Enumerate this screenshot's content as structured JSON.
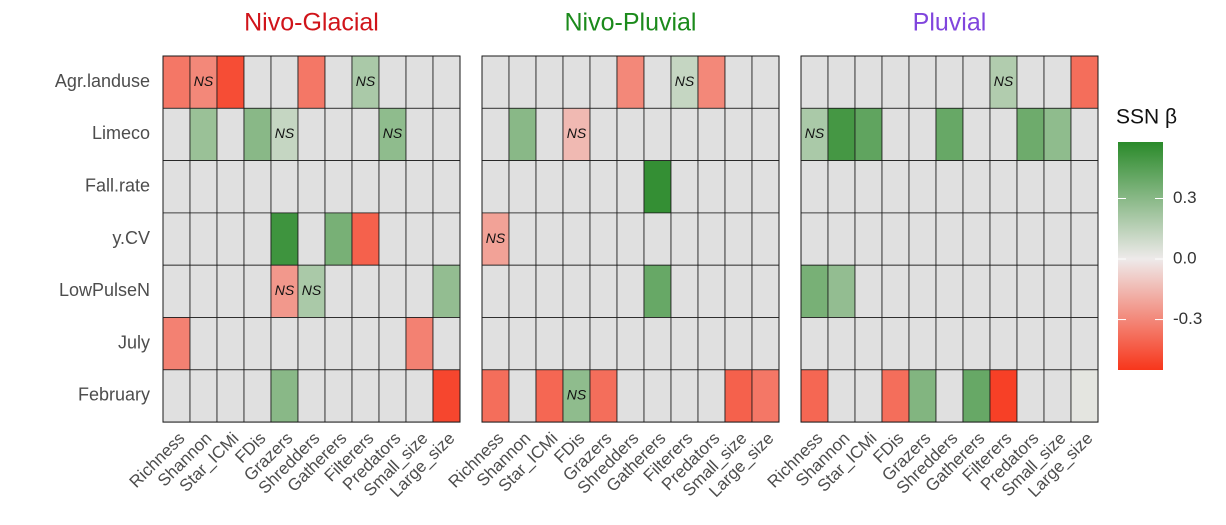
{
  "chart_data": {
    "type": "heatmap",
    "legend_title": "SSN β",
    "clim": [
      -0.55,
      0.58
    ],
    "cticks": [
      {
        "value": 0.3,
        "label": "0.3"
      },
      {
        "value": 0,
        "label": "0.0"
      },
      {
        "value": -0.3,
        "label": "-0.3"
      }
    ],
    "colors": {
      "low": "#f7361b",
      "mid": "#eeeaea",
      "high": "#2a8a2a",
      "na": "#e0e0e0"
    },
    "categories": [
      "Richness",
      "Shannon",
      "Star_ICMi",
      "FDis",
      "Grazers",
      "Shredders",
      "Gatherers",
      "Filterers",
      "Predators",
      "Small_size",
      "Large_size"
    ],
    "rows": [
      "Agr.landuse",
      "Limeco",
      "Fall.rate",
      "y.CV",
      "LowPulseN",
      "July",
      "February"
    ],
    "facets": [
      {
        "title": "Nivo-Glacial",
        "title_color": "#d0141a",
        "values": [
          [
            -0.35,
            -0.3,
            -0.48,
            null,
            null,
            -0.35,
            null,
            0.2,
            null,
            null,
            null
          ],
          [
            null,
            0.25,
            null,
            0.3,
            0.12,
            null,
            null,
            null,
            0.28,
            null,
            null
          ],
          [
            null,
            null,
            null,
            null,
            null,
            null,
            null,
            null,
            null,
            null,
            null
          ],
          [
            null,
            null,
            null,
            null,
            0.52,
            null,
            0.35,
            -0.42,
            null,
            null,
            null
          ],
          [
            null,
            null,
            null,
            null,
            -0.25,
            0.2,
            null,
            null,
            null,
            null,
            0.27
          ],
          [
            -0.32,
            null,
            null,
            null,
            null,
            null,
            null,
            null,
            null,
            -0.32,
            null
          ],
          [
            null,
            null,
            null,
            null,
            0.3,
            null,
            null,
            null,
            null,
            null,
            -0.5
          ]
        ],
        "cell_labels": [
          [
            null,
            "NS",
            null,
            null,
            null,
            null,
            null,
            "NS",
            null,
            null,
            null
          ],
          [
            null,
            null,
            null,
            null,
            "NS",
            null,
            null,
            null,
            "NS",
            null,
            null
          ],
          [
            null,
            null,
            null,
            null,
            null,
            null,
            null,
            null,
            null,
            null,
            null
          ],
          [
            null,
            null,
            null,
            null,
            null,
            null,
            null,
            null,
            null,
            null,
            null
          ],
          [
            null,
            null,
            null,
            null,
            "NS",
            "NS",
            null,
            null,
            null,
            null,
            null
          ],
          [
            null,
            null,
            null,
            null,
            null,
            null,
            null,
            null,
            null,
            null,
            null
          ],
          [
            null,
            null,
            null,
            null,
            null,
            null,
            null,
            null,
            null,
            null,
            null
          ]
        ]
      },
      {
        "title": "Nivo-Pluvial",
        "title_color": "#1b8a1b",
        "values": [
          [
            null,
            null,
            null,
            null,
            null,
            -0.3,
            null,
            0.12,
            -0.3,
            null,
            null
          ],
          [
            null,
            0.3,
            null,
            -0.15,
            null,
            null,
            null,
            null,
            null,
            null,
            null
          ],
          [
            null,
            null,
            null,
            null,
            null,
            null,
            0.55,
            null,
            null,
            null,
            null
          ],
          [
            -0.22,
            null,
            null,
            null,
            null,
            null,
            null,
            null,
            null,
            null,
            null
          ],
          [
            null,
            null,
            null,
            null,
            null,
            null,
            0.4,
            null,
            null,
            null,
            null
          ],
          [
            null,
            null,
            null,
            null,
            null,
            null,
            null,
            null,
            null,
            null,
            null
          ],
          [
            -0.38,
            null,
            -0.4,
            0.28,
            -0.38,
            null,
            null,
            null,
            null,
            -0.42,
            -0.35
          ]
        ],
        "cell_labels": [
          [
            null,
            null,
            null,
            null,
            null,
            null,
            null,
            "NS",
            null,
            null,
            null
          ],
          [
            null,
            null,
            null,
            "NS",
            null,
            null,
            null,
            null,
            null,
            null,
            null
          ],
          [
            null,
            null,
            null,
            null,
            null,
            null,
            null,
            null,
            null,
            null,
            null
          ],
          [
            "NS",
            null,
            null,
            null,
            null,
            null,
            null,
            null,
            null,
            null,
            null
          ],
          [
            null,
            null,
            null,
            null,
            null,
            null,
            null,
            null,
            null,
            null,
            null
          ],
          [
            null,
            null,
            null,
            null,
            null,
            null,
            null,
            null,
            null,
            null,
            null
          ],
          [
            null,
            null,
            null,
            "NS",
            null,
            null,
            null,
            null,
            null,
            null,
            null
          ]
        ]
      },
      {
        "title": "Pluvial",
        "title_color": "#8045dd",
        "values": [
          [
            null,
            null,
            null,
            null,
            null,
            null,
            null,
            0.18,
            null,
            null,
            -0.38
          ],
          [
            0.2,
            0.5,
            0.42,
            null,
            null,
            0.4,
            null,
            null,
            0.38,
            0.28,
            null
          ],
          [
            null,
            null,
            null,
            null,
            null,
            null,
            null,
            null,
            null,
            null,
            null
          ],
          [
            null,
            null,
            null,
            null,
            null,
            null,
            null,
            null,
            null,
            null,
            null
          ],
          [
            0.35,
            0.27,
            null,
            null,
            null,
            null,
            null,
            null,
            null,
            null,
            null
          ],
          [
            null,
            null,
            null,
            null,
            null,
            null,
            null,
            null,
            null,
            null,
            null
          ],
          [
            -0.4,
            null,
            null,
            -0.38,
            0.32,
            null,
            0.4,
            -0.52,
            null,
            null,
            0.03
          ]
        ],
        "cell_labels": [
          [
            null,
            null,
            null,
            null,
            null,
            null,
            null,
            "NS",
            null,
            null,
            null
          ],
          [
            "NS",
            null,
            null,
            null,
            null,
            null,
            null,
            null,
            null,
            null,
            null
          ],
          [
            null,
            null,
            null,
            null,
            null,
            null,
            null,
            null,
            null,
            null,
            null
          ],
          [
            null,
            null,
            null,
            null,
            null,
            null,
            null,
            null,
            null,
            null,
            null
          ],
          [
            null,
            null,
            null,
            null,
            null,
            null,
            null,
            null,
            null,
            null,
            null
          ],
          [
            null,
            null,
            null,
            null,
            null,
            null,
            null,
            null,
            null,
            null,
            null
          ],
          [
            null,
            null,
            null,
            null,
            null,
            null,
            null,
            null,
            null,
            null,
            null
          ]
        ]
      }
    ]
  }
}
